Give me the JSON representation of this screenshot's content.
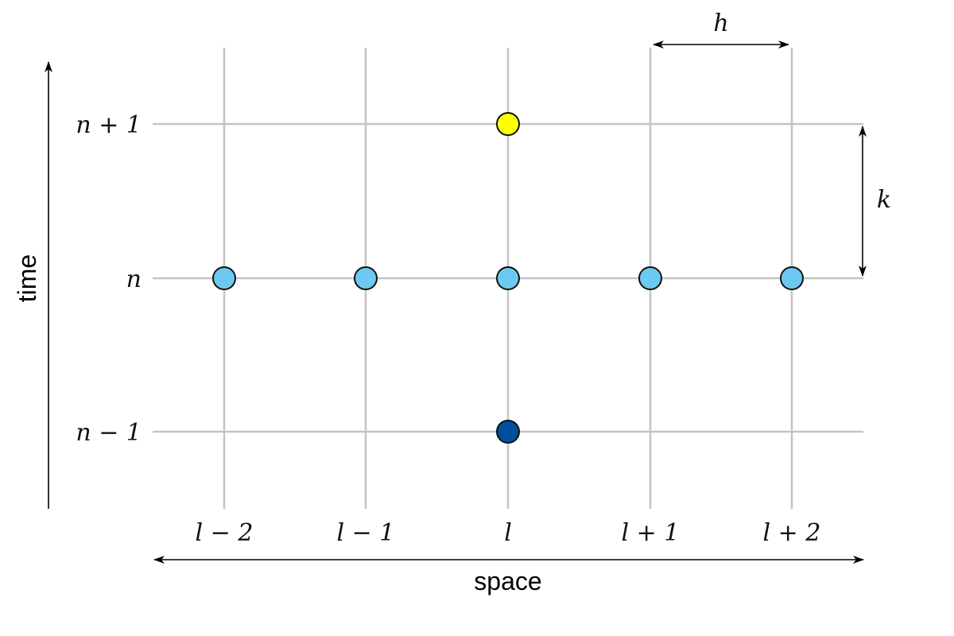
{
  "diagram": {
    "axes": {
      "time_label": "time",
      "space_label": "space"
    },
    "rows": [
      {
        "id": "n-plus-1",
        "label": "n + 1"
      },
      {
        "id": "n",
        "label": "n"
      },
      {
        "id": "n-minus-1",
        "label": "n − 1"
      }
    ],
    "columns": [
      {
        "id": "l-minus-2",
        "label": "l − 2"
      },
      {
        "id": "l-minus-1",
        "label": "l − 1"
      },
      {
        "id": "l",
        "label": "l"
      },
      {
        "id": "l-plus-1",
        "label": "l + 1"
      },
      {
        "id": "l-plus-2",
        "label": "l + 2"
      }
    ],
    "spacing": {
      "h_label": "h",
      "k_label": "k"
    },
    "colors": {
      "future_node": "#ffff00",
      "current_node": "#6ec9f0",
      "past_node": "#0050a0",
      "grid": "#c4c4c4"
    },
    "nodes": [
      {
        "row": "n-plus-1",
        "col": "l",
        "kind": "future"
      },
      {
        "row": "n",
        "col": "l-minus-2",
        "kind": "current"
      },
      {
        "row": "n",
        "col": "l-minus-1",
        "kind": "current"
      },
      {
        "row": "n",
        "col": "l",
        "kind": "current"
      },
      {
        "row": "n",
        "col": "l-plus-1",
        "kind": "current"
      },
      {
        "row": "n",
        "col": "l-plus-2",
        "kind": "current"
      },
      {
        "row": "n-minus-1",
        "col": "l",
        "kind": "past"
      }
    ]
  }
}
